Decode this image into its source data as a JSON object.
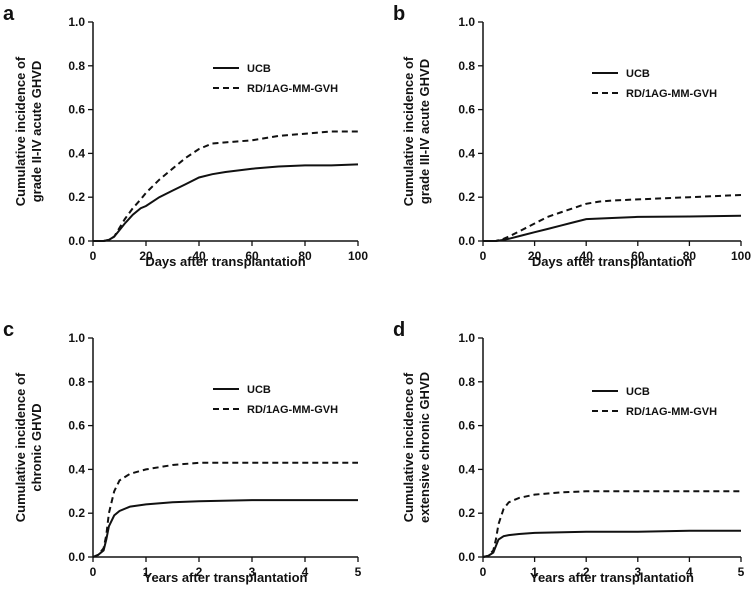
{
  "chart_data": [
    {
      "panel": "a",
      "type": "line",
      "xlabel": "Days after transplantation",
      "ylabel": [
        "Cumulative incidence of",
        "grade II-IV acute GHVD"
      ],
      "xlim": [
        0,
        100
      ],
      "ylim": [
        0,
        1.0
      ],
      "xticks": [
        "0",
        "20",
        "40",
        "60",
        "80",
        "100"
      ],
      "yticks": [
        "0.0",
        "0.2",
        "0.4",
        "0.6",
        "0.8",
        "1.0"
      ],
      "legend_position": "upper-center",
      "series": [
        {
          "name": "UCB",
          "style": "solid",
          "x": [
            0,
            4,
            6,
            8,
            10,
            12,
            15,
            18,
            20,
            25,
            30,
            35,
            40,
            45,
            50,
            60,
            70,
            80,
            90,
            100
          ],
          "y": [
            0,
            0,
            0.005,
            0.02,
            0.05,
            0.08,
            0.12,
            0.15,
            0.16,
            0.2,
            0.23,
            0.26,
            0.29,
            0.305,
            0.315,
            0.33,
            0.34,
            0.345,
            0.345,
            0.35
          ]
        },
        {
          "name": "RD/1AG-MM-GVH",
          "style": "dashed",
          "x": [
            0,
            4,
            6,
            8,
            10,
            12,
            15,
            18,
            20,
            25,
            30,
            35,
            40,
            45,
            50,
            60,
            70,
            80,
            90,
            100
          ],
          "y": [
            0,
            0,
            0.005,
            0.02,
            0.06,
            0.1,
            0.15,
            0.19,
            0.22,
            0.28,
            0.33,
            0.38,
            0.42,
            0.445,
            0.45,
            0.46,
            0.48,
            0.49,
            0.5,
            0.5
          ]
        }
      ]
    },
    {
      "panel": "b",
      "type": "line",
      "xlabel": "Days after transplantation",
      "ylabel": [
        "Cumulative incidence of",
        "grade III-IV acute GHVD"
      ],
      "xlim": [
        0,
        100
      ],
      "ylim": [
        0,
        1.0
      ],
      "xticks": [
        "0",
        "20",
        "40",
        "60",
        "80",
        "100"
      ],
      "yticks": [
        "0.0",
        "0.2",
        "0.4",
        "0.6",
        "0.8",
        "1.0"
      ],
      "legend_position": "upper-right",
      "series": [
        {
          "name": "UCB",
          "style": "solid",
          "x": [
            0,
            5,
            8,
            10,
            15,
            20,
            25,
            30,
            35,
            40,
            50,
            60,
            80,
            100
          ],
          "y": [
            0,
            0,
            0.005,
            0.01,
            0.025,
            0.04,
            0.055,
            0.07,
            0.085,
            0.1,
            0.105,
            0.11,
            0.112,
            0.115
          ]
        },
        {
          "name": "RD/1AG-MM-GVH",
          "style": "dashed",
          "x": [
            0,
            5,
            8,
            10,
            15,
            20,
            25,
            30,
            35,
            40,
            45,
            50,
            60,
            70,
            80,
            90,
            100
          ],
          "y": [
            0,
            0,
            0.01,
            0.02,
            0.05,
            0.08,
            0.11,
            0.13,
            0.15,
            0.17,
            0.18,
            0.185,
            0.19,
            0.195,
            0.2,
            0.205,
            0.21
          ]
        }
      ]
    },
    {
      "panel": "c",
      "type": "line",
      "xlabel": "Years after transplantation",
      "ylabel": [
        "Cumulative incidence of",
        "chronic GHVD"
      ],
      "xlim": [
        0,
        5
      ],
      "ylim": [
        0,
        1.0
      ],
      "xticks": [
        "0",
        "1",
        "2",
        "3",
        "4",
        "5"
      ],
      "yticks": [
        "0.0",
        "0.2",
        "0.4",
        "0.6",
        "0.8",
        "1.0"
      ],
      "legend_position": "right",
      "series": [
        {
          "name": "UCB",
          "style": "solid",
          "x": [
            0,
            0.1,
            0.2,
            0.25,
            0.3,
            0.4,
            0.5,
            0.7,
            1.0,
            1.5,
            2.0,
            3.0,
            4.0,
            5.0
          ],
          "y": [
            0,
            0.01,
            0.03,
            0.08,
            0.14,
            0.19,
            0.21,
            0.23,
            0.24,
            0.25,
            0.255,
            0.26,
            0.26,
            0.26
          ]
        },
        {
          "name": "RD/1AG-MM-GVH",
          "style": "dashed",
          "x": [
            0,
            0.1,
            0.2,
            0.25,
            0.3,
            0.4,
            0.5,
            0.7,
            1.0,
            1.5,
            2.0,
            3.0,
            4.0,
            5.0
          ],
          "y": [
            0,
            0.01,
            0.04,
            0.1,
            0.2,
            0.3,
            0.35,
            0.38,
            0.4,
            0.42,
            0.43,
            0.43,
            0.43,
            0.43
          ]
        }
      ]
    },
    {
      "panel": "d",
      "type": "line",
      "xlabel": "Years after transplantation",
      "ylabel": [
        "Cumulative incidence of",
        "extensive chronic GHVD"
      ],
      "xlim": [
        0,
        5
      ],
      "ylim": [
        0,
        1.0
      ],
      "xticks": [
        "0",
        "1",
        "2",
        "3",
        "4",
        "5"
      ],
      "yticks": [
        "0.0",
        "0.2",
        "0.4",
        "0.6",
        "0.8",
        "1.0"
      ],
      "legend_position": "right",
      "series": [
        {
          "name": "UCB",
          "style": "solid",
          "x": [
            0,
            0.1,
            0.2,
            0.25,
            0.3,
            0.4,
            0.5,
            0.7,
            1.0,
            2.0,
            3.0,
            4.0,
            5.0
          ],
          "y": [
            0,
            0.005,
            0.02,
            0.05,
            0.08,
            0.095,
            0.1,
            0.105,
            0.11,
            0.115,
            0.115,
            0.12,
            0.12
          ]
        },
        {
          "name": "RD/1AG-MM-GVH",
          "style": "dashed",
          "x": [
            0,
            0.1,
            0.2,
            0.25,
            0.3,
            0.4,
            0.5,
            0.7,
            1.0,
            1.5,
            2.0,
            3.0,
            4.0,
            5.0
          ],
          "y": [
            0,
            0.005,
            0.03,
            0.08,
            0.15,
            0.22,
            0.25,
            0.27,
            0.285,
            0.295,
            0.3,
            0.3,
            0.3,
            0.3
          ]
        }
      ]
    }
  ]
}
